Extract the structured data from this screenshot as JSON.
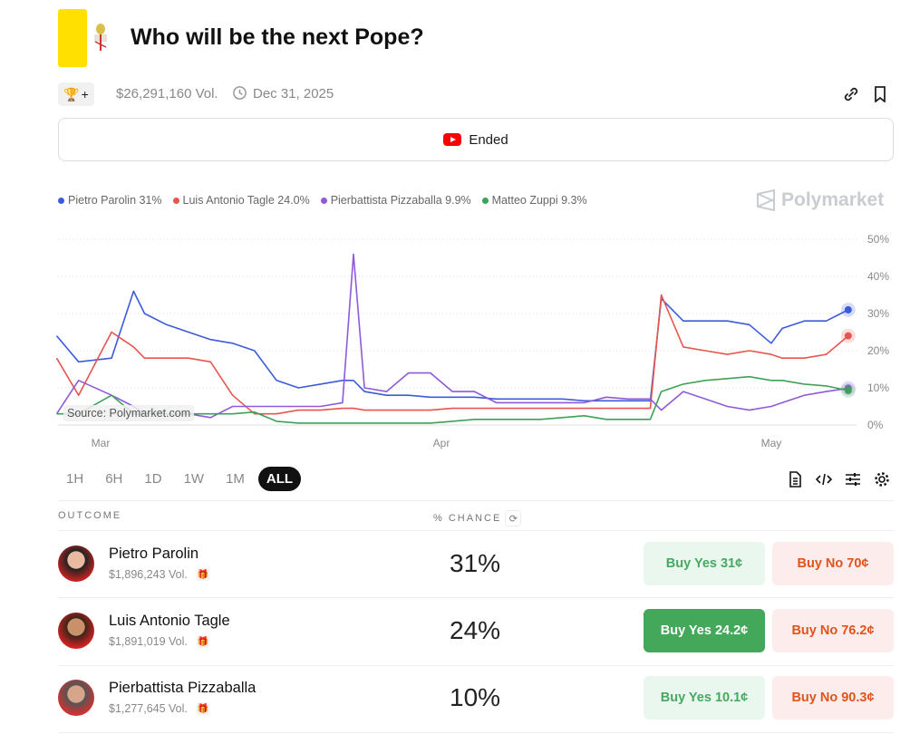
{
  "header": {
    "title": "Who will be the next Pope?",
    "volume": "$26,291,160 Vol.",
    "end_date": "Dec 31, 2025",
    "status": "Ended",
    "flag_color": "#ffe000"
  },
  "legend": [
    {
      "label": "Pietro Parolin 31%",
      "color": "#3b5bdb"
    },
    {
      "label": "Luis Antonio Tagle 24.0%",
      "color": "#e8554e"
    },
    {
      "label": "Pierbattista Pizzaballa 9.9%",
      "color": "#8e5ad8"
    },
    {
      "label": "Matteo Zuppi 9.3%",
      "color": "#3ea159"
    }
  ],
  "brand": "Polymarket",
  "source": "Source: Polymarket.com",
  "chart_data": {
    "type": "line",
    "ylim": [
      0,
      50
    ],
    "y_ticks": [
      "0%",
      "10%",
      "20%",
      "30%",
      "40%",
      "50%"
    ],
    "x_ticks": [
      {
        "label": "Mar",
        "date": "2025-03-01"
      },
      {
        "label": "Apr",
        "date": "2025-04-01"
      },
      {
        "label": "May",
        "date": "2025-05-01"
      }
    ],
    "grid": true,
    "legend_position": "top-left",
    "x": [
      "2025-02-25",
      "2025-02-27",
      "2025-03-02",
      "2025-03-04",
      "2025-03-05",
      "2025-03-07",
      "2025-03-09",
      "2025-03-11",
      "2025-03-13",
      "2025-03-15",
      "2025-03-17",
      "2025-03-19",
      "2025-03-21",
      "2025-03-23",
      "2025-03-24",
      "2025-03-25",
      "2025-03-27",
      "2025-03-29",
      "2025-03-31",
      "2025-04-02",
      "2025-04-04",
      "2025-04-06",
      "2025-04-08",
      "2025-04-10",
      "2025-04-12",
      "2025-04-14",
      "2025-04-16",
      "2025-04-18",
      "2025-04-20",
      "2025-04-21",
      "2025-04-23",
      "2025-04-25",
      "2025-04-27",
      "2025-04-29",
      "2025-05-01",
      "2025-05-02",
      "2025-05-04",
      "2025-05-06",
      "2025-05-08"
    ],
    "series": [
      {
        "name": "Pietro Parolin",
        "color": "#3b5bdb",
        "values": [
          24,
          17,
          18,
          36,
          30,
          27,
          25,
          23,
          22,
          20,
          12,
          10,
          11,
          12,
          12,
          9,
          8,
          8,
          7.5,
          7.5,
          7.5,
          7,
          7,
          7,
          7,
          6.5,
          6.5,
          6.5,
          6.5,
          34,
          28,
          28,
          28,
          27,
          22,
          26,
          28,
          28,
          31
        ]
      },
      {
        "name": "Luis Antonio Tagle",
        "color": "#e8554e",
        "values": [
          18,
          8,
          25,
          21,
          18,
          18,
          18,
          17,
          8,
          3,
          3,
          4,
          4,
          4.5,
          4.5,
          4,
          4,
          4,
          4,
          4.5,
          4.5,
          4.5,
          4.5,
          4.5,
          4.5,
          4.5,
          4.5,
          4.5,
          4.5,
          35,
          21,
          20,
          19,
          20,
          19,
          18,
          18,
          19,
          24
        ]
      },
      {
        "name": "Pierbattista Pizzaballa",
        "color": "#8e5ad8",
        "values": [
          3,
          12,
          8,
          5,
          3,
          3,
          3,
          2,
          5,
          5,
          5,
          5,
          5,
          6,
          46,
          10,
          9,
          14,
          14,
          9,
          9,
          6,
          6,
          6,
          6,
          6,
          7.5,
          7,
          7,
          4,
          9,
          7,
          5,
          4,
          5,
          6,
          8,
          9,
          9.9
        ]
      },
      {
        "name": "Matteo Zuppi",
        "color": "#3ea159",
        "values": [
          3,
          3,
          8,
          3,
          3,
          3,
          3,
          3,
          3,
          3.5,
          1,
          0.5,
          0.5,
          0.5,
          0.5,
          0.5,
          0.5,
          0.5,
          0.5,
          1,
          1.5,
          1.5,
          1.5,
          1.5,
          2,
          2.5,
          1.5,
          1.5,
          1.5,
          9,
          11,
          12,
          12.5,
          13,
          12,
          12,
          11,
          10.5,
          9.3
        ]
      }
    ]
  },
  "ranges": [
    "1H",
    "6H",
    "1D",
    "1W",
    "1M",
    "ALL"
  ],
  "active_range": "ALL",
  "table": {
    "col_outcome": "OUTCOME",
    "col_chance": "% CHANCE",
    "rows": [
      {
        "name": "Pietro Parolin",
        "volume": "$1,896,243 Vol.",
        "chance": "31%",
        "buy_yes": "Buy Yes 31¢",
        "buy_no": "Buy No 70¢"
      },
      {
        "name": "Luis Antonio Tagle",
        "volume": "$1,891,019 Vol.",
        "chance": "24%",
        "buy_yes": "Buy Yes 24.2¢",
        "buy_no": "Buy No 76.2¢"
      },
      {
        "name": "Pierbattista Pizzaballa",
        "volume": "$1,277,645 Vol.",
        "chance": "10%",
        "buy_yes": "Buy Yes 10.1¢",
        "buy_no": "Buy No 90.3¢"
      }
    ]
  }
}
